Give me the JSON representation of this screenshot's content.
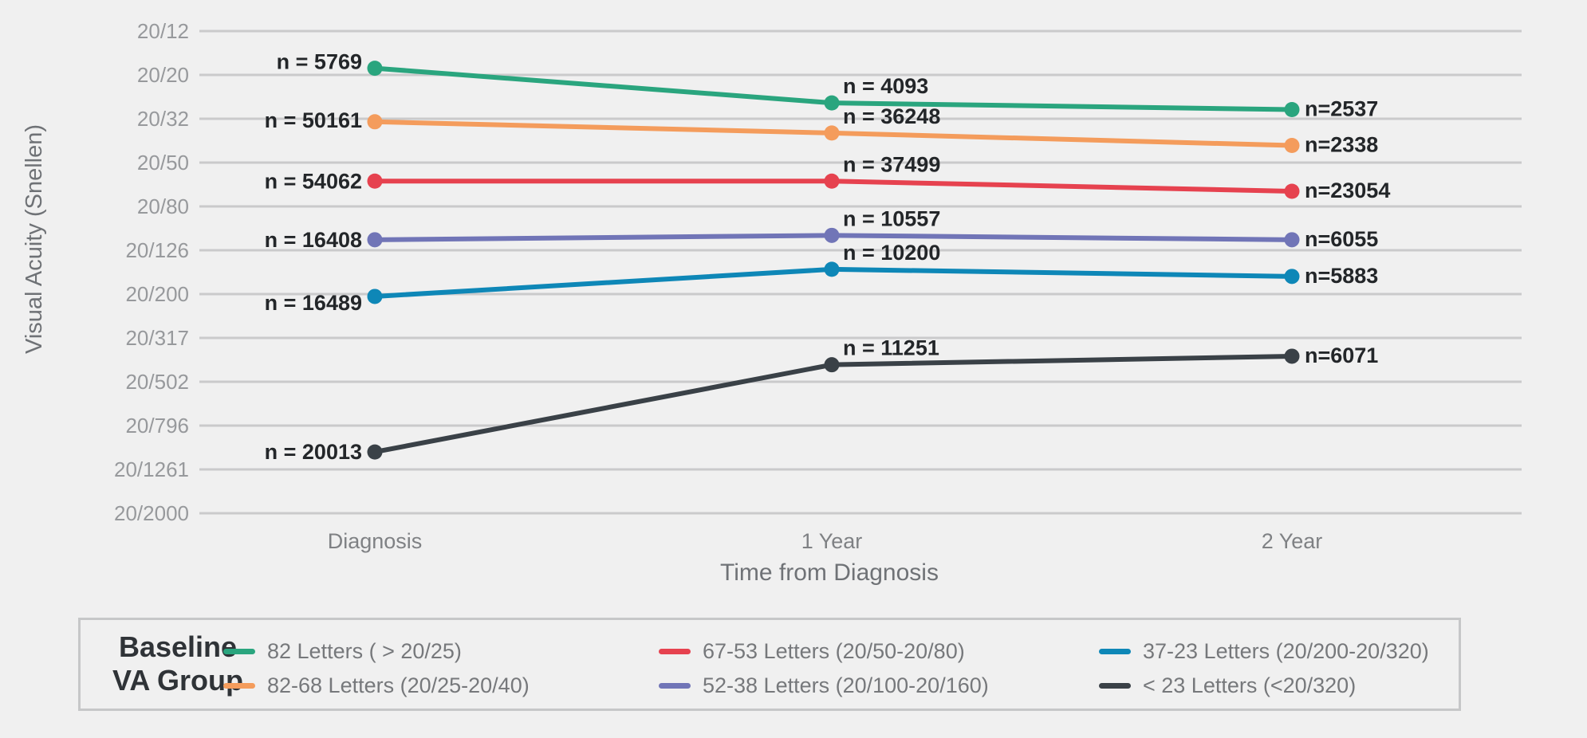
{
  "page": {
    "background": "#F0F0F0"
  },
  "chart_data": {
    "type": "line",
    "title": "",
    "xlabel": "Time from Diagnosis",
    "ylabel": "Visual Acuity (Snellen)",
    "x_categories": [
      "Diagnosis",
      "1 Year",
      "2 Year"
    ],
    "y_axis": {
      "scale": "log",
      "tick_labels": [
        "20/12",
        "20/20",
        "20/32",
        "20/50",
        "20/80",
        "20/126",
        "20/200",
        "20/317",
        "20/502",
        "20/796",
        "20/1261",
        "20/2000"
      ],
      "tick_denominators": [
        12,
        20,
        32,
        50,
        80,
        126,
        200,
        317,
        502,
        796,
        1261,
        2000
      ]
    },
    "grid": true,
    "gridline_color": "#CACACB",
    "axis_tick_color": "#97999C",
    "axis_title_color": "#6F7276",
    "n_label_color": "#232629",
    "legend_position": "bottom",
    "series": [
      {
        "name": "82 Letters ( > 20/25)",
        "color": "#2AA57E",
        "snellen_y": [
          18.5,
          27,
          29
        ],
        "n_values": [
          5769,
          4093,
          2537
        ],
        "n_labels": [
          "n = 5769",
          "n = 4093",
          "n=2537"
        ]
      },
      {
        "name": "82-68 Letters (20/25-20/40)",
        "color": "#F49C5C",
        "snellen_y": [
          33,
          37,
          42
        ],
        "n_values": [
          50161,
          36248,
          2338
        ],
        "n_labels": [
          "n = 50161",
          "n = 36248",
          "n=2338"
        ]
      },
      {
        "name": "67-53 Letters (20/50-20/80)",
        "color": "#E6424F",
        "snellen_y": [
          61,
          61,
          68
        ],
        "n_values": [
          54062,
          37499,
          23054
        ],
        "n_labels": [
          "n = 54062",
          "n = 37499",
          "n=23054"
        ]
      },
      {
        "name": "52-38 Letters (20/100-20/160)",
        "color": "#7175B7",
        "snellen_y": [
          113,
          108,
          113
        ],
        "n_values": [
          16408,
          10557,
          6055
        ],
        "n_labels": [
          "n = 16408",
          "n = 10557",
          "n=6055"
        ]
      },
      {
        "name": "37-23 Letters (20/200-20/320)",
        "color": "#0E87B7",
        "snellen_y": [
          205,
          154,
          166
        ],
        "n_values": [
          16489,
          10200,
          5883
        ],
        "n_labels": [
          "n = 16489",
          "n = 10200",
          "n=5883"
        ]
      },
      {
        "name": "< 23 Letters (<20/320)",
        "color": "#3A4147",
        "snellen_y": [
          1050,
          420,
          384
        ],
        "n_values": [
          20013,
          11251,
          6071
        ],
        "n_labels": [
          "n = 20013",
          "n = 11251",
          "n=6071"
        ]
      }
    ],
    "legend": {
      "title_lines": [
        "Baseline",
        "VA Group"
      ]
    }
  }
}
